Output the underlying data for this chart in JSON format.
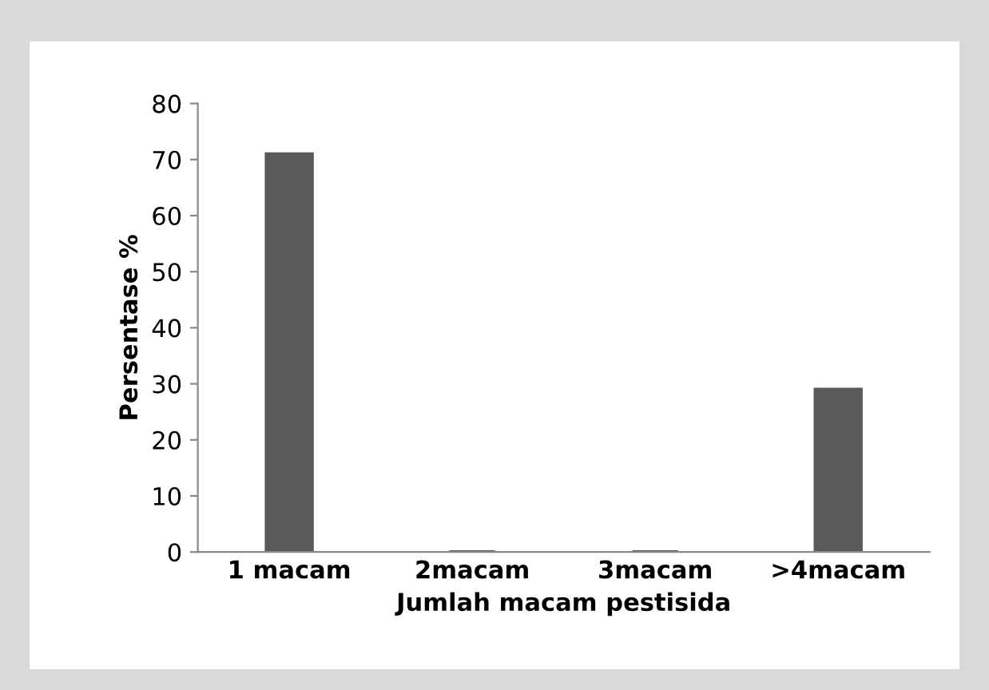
{
  "chart_data": {
    "type": "bar",
    "xlabel": "Jumlah macam pestisida",
    "ylabel": "Persentase %",
    "categories": [
      "1 macam",
      "2macam",
      "3macam",
      ">4macam"
    ],
    "values": [
      71,
      0,
      0,
      29
    ],
    "color": "#5a5a5a",
    "ylim": [
      0,
      80
    ],
    "yticks": [
      0,
      10,
      20,
      30,
      40,
      50,
      60,
      70,
      80
    ],
    "grid": false
  }
}
